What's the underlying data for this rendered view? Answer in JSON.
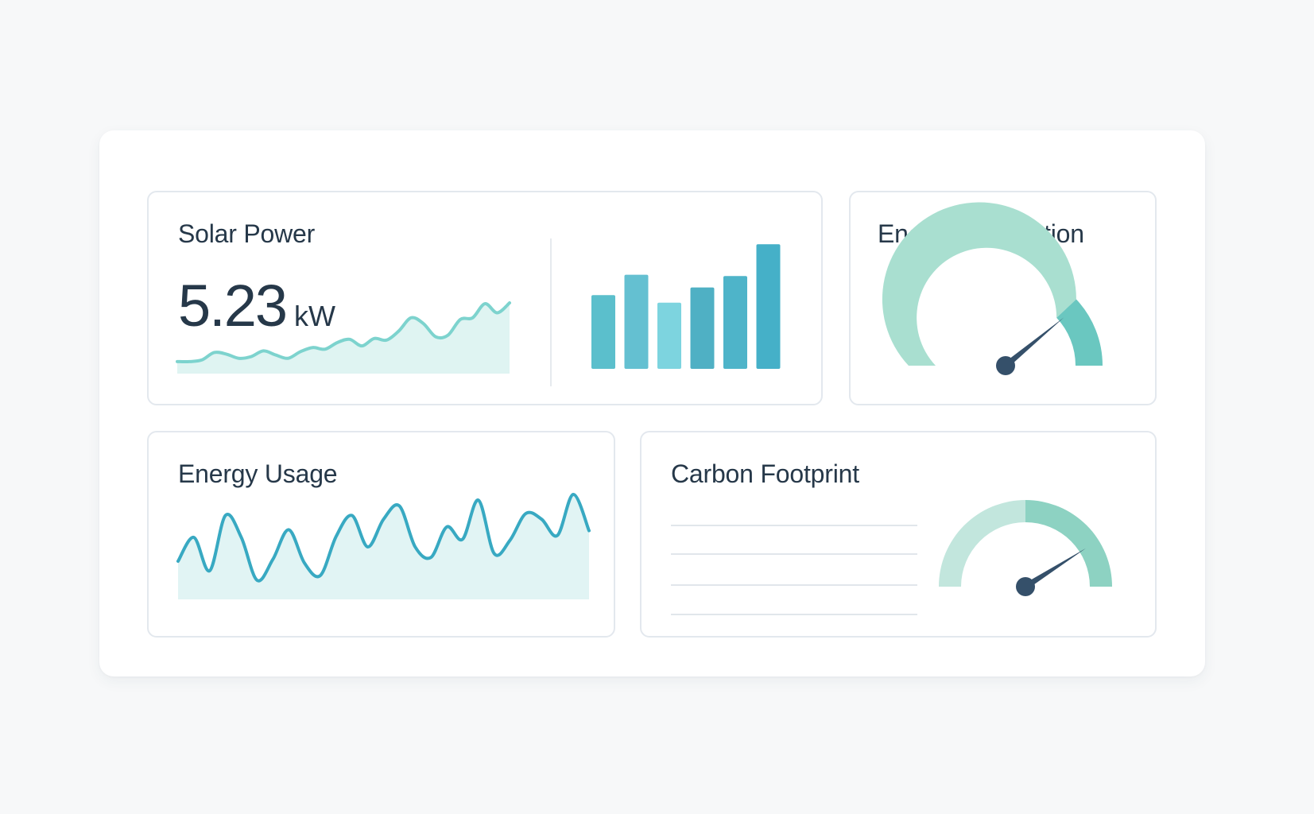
{
  "cards": {
    "solar": {
      "title": "Solar Power",
      "value": "5.23",
      "unit": "kW",
      "sparkline": [
        0.03,
        0.03,
        0.05,
        0.14,
        0.12,
        0.07,
        0.09,
        0.16,
        0.11,
        0.07,
        0.15,
        0.2,
        0.18,
        0.26,
        0.3,
        0.22,
        0.31,
        0.29,
        0.4,
        0.56,
        0.49,
        0.33,
        0.35,
        0.54,
        0.56,
        0.73,
        0.62,
        0.74
      ],
      "bars": [
        0.58,
        0.74,
        0.52,
        0.64,
        0.73,
        0.98
      ]
    },
    "production": {
      "title": "Energy Production",
      "gauge_value": 0.78
    },
    "usage": {
      "title": "Energy Usage",
      "sparkline": [
        0.3,
        0.55,
        0.2,
        0.78,
        0.55,
        0.1,
        0.32,
        0.63,
        0.28,
        0.15,
        0.56,
        0.78,
        0.45,
        0.74,
        0.88,
        0.45,
        0.34,
        0.66,
        0.53,
        0.94,
        0.38,
        0.52,
        0.8,
        0.74,
        0.57,
        1.0,
        0.62
      ]
    },
    "carbon": {
      "title": "Carbon Footprint",
      "gauge_value": 0.82
    }
  },
  "colors": {
    "teal_line": "#7dd3ce",
    "teal_fill": "#dff4f2",
    "bar_colors": [
      "#5bbfcc",
      "#64c0d1",
      "#7dd4df",
      "#4fb0c4",
      "#4eb4c9",
      "#45b0c8"
    ],
    "gauge_light": "#a9dfd0",
    "gauge_dark": "#6ac7c0",
    "needle": "#35506a",
    "usage_line": "#38a9c2",
    "usage_fill": "#e1f4f4",
    "divider": "#e1e6eb"
  }
}
